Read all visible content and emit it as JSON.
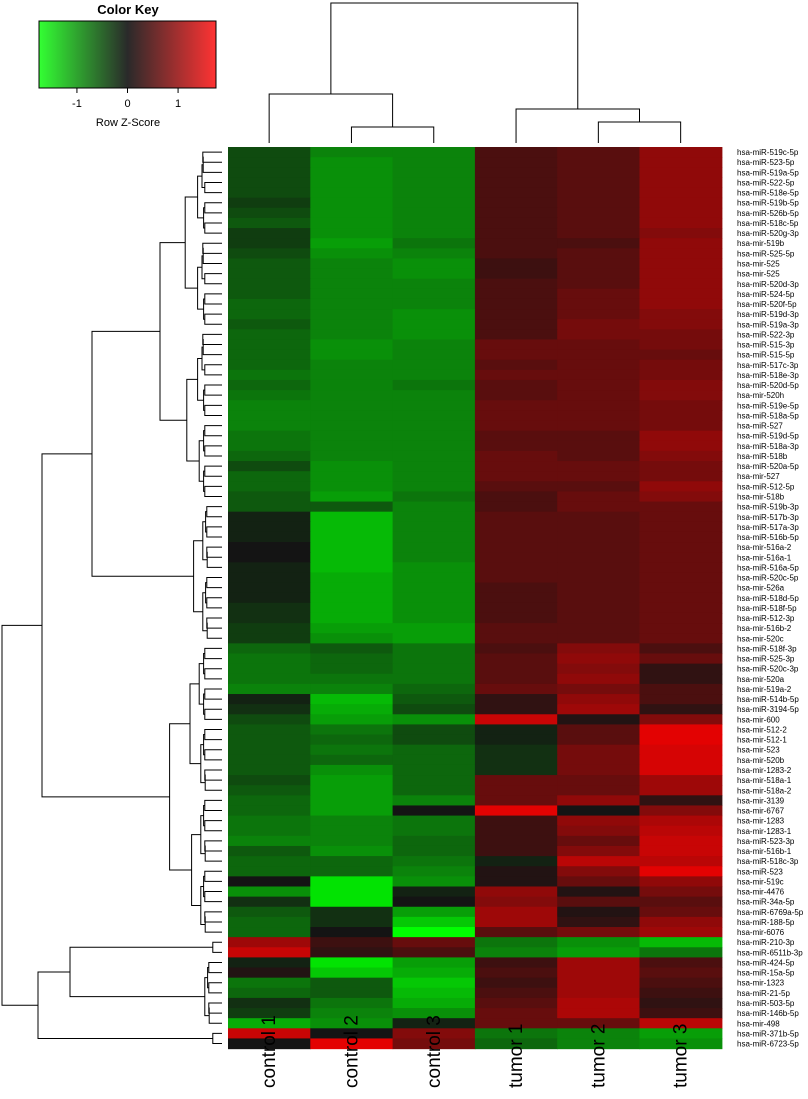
{
  "chart_data": {
    "type": "heatmap",
    "color_key": {
      "title": "Color Key",
      "label": "Row Z-Score",
      "ticks": [
        "-1",
        "0",
        "1"
      ],
      "tick_values": [
        -1,
        0,
        1
      ],
      "range": [
        -1.75,
        1.75
      ],
      "colors": {
        "low": "#33ff33",
        "mid": "#2a2a2a",
        "high": "#ff3333"
      }
    },
    "columns": [
      "control 1",
      "control 2",
      "control 3",
      "tumor 1",
      "tumor 2",
      "tumor 3"
    ],
    "rows": [
      "hsa-miR-519c-5p",
      "hsa-miR-523-5p",
      "hsa-miR-519a-5p",
      "hsa-miR-522-5p",
      "hsa-miR-518e-5p",
      "hsa-miR-519b-5p",
      "hsa-miR-526b-5p",
      "hsa-miR-518c-5p",
      "hsa-miR-520g-3p",
      "hsa-mir-519b",
      "hsa-miR-525-5p",
      "hsa-mir-525",
      "hsa-mir-525",
      "hsa-miR-520d-3p",
      "hsa-miR-524-5p",
      "hsa-miR-520f-5p",
      "hsa-miR-519d-3p",
      "hsa-miR-519a-3p",
      "hsa-miR-522-3p",
      "hsa-miR-515-3p",
      "hsa-miR-515-5p",
      "hsa-miR-517c-3p",
      "hsa-miR-518e-3p",
      "hsa-miR-520d-5p",
      "hsa-mir-520h",
      "hsa-miR-519e-5p",
      "hsa-miR-518a-5p",
      "hsa-miR-527",
      "hsa-miR-519d-5p",
      "hsa-miR-518a-3p",
      "hsa-miR-518b",
      "hsa-miR-520a-5p",
      "hsa-mir-527",
      "hsa-miR-512-5p",
      "hsa-mir-518b",
      "hsa-miR-519b-3p",
      "hsa-miR-517b-3p",
      "hsa-miR-517a-3p",
      "hsa-miR-516b-5p",
      "hsa-mir-516a-2",
      "hsa-mir-516a-1",
      "hsa-miR-516a-5p",
      "hsa-miR-520c-5p",
      "hsa-mir-526a",
      "hsa-miR-518d-5p",
      "hsa-miR-518f-5p",
      "hsa-miR-512-3p",
      "hsa-mir-516b-2",
      "hsa-mir-520c",
      "hsa-miR-518f-3p",
      "hsa-miR-525-3p",
      "hsa-miR-520c-3p",
      "hsa-mir-520a",
      "hsa-mir-519a-2",
      "hsa-miR-514b-5p",
      "hsa-miR-3194-5p",
      "hsa-mir-600",
      "hsa-mir-512-2",
      "hsa-mir-512-1",
      "hsa-mir-523",
      "hsa-mir-520b",
      "hsa-mir-1283-2",
      "hsa-mir-518a-1",
      "hsa-mir-518a-2",
      "hsa-mir-3139",
      "hsa-mir-6767",
      "hsa-mir-1283",
      "hsa-mir-1283-1",
      "hsa-miR-523-3p",
      "hsa-mir-516b-1",
      "hsa-miR-518c-3p",
      "hsa-miR-523",
      "hsa-mir-519c",
      "hsa-mir-4476",
      "hsa-miR-34a-5p",
      "hsa-miR-6769a-5p",
      "hsa-miR-188-5p",
      "hsa-mir-6076",
      "hsa-miR-210-3p",
      "hsa-miR-6511b-3p",
      "hsa-miR-424-5p",
      "hsa-miR-15a-5p",
      "hsa-mir-1323",
      "hsa-miR-21-5p",
      "hsa-miR-503-5p",
      "hsa-miR-146b-5p",
      "hsa-mir-498",
      "hsa-miR-371b-5p",
      "hsa-miR-6723-5p"
    ],
    "values": [
      [
        -0.4,
        -0.8,
        -0.8,
        0.4,
        0.5,
        0.9
      ],
      [
        -0.4,
        -0.9,
        -0.8,
        0.4,
        0.5,
        0.9
      ],
      [
        -0.4,
        -0.9,
        -0.8,
        0.4,
        0.5,
        0.9
      ],
      [
        -0.4,
        -0.9,
        -0.8,
        0.4,
        0.5,
        0.9
      ],
      [
        -0.4,
        -0.9,
        -0.8,
        0.4,
        0.5,
        0.9
      ],
      [
        -0.3,
        -0.9,
        -0.8,
        0.4,
        0.5,
        0.9
      ],
      [
        -0.4,
        -0.9,
        -0.8,
        0.4,
        0.5,
        0.9
      ],
      [
        -0.5,
        -0.9,
        -0.8,
        0.4,
        0.5,
        0.9
      ],
      [
        -0.3,
        -0.9,
        -0.8,
        0.4,
        0.5,
        0.8
      ],
      [
        -0.3,
        -1.0,
        -0.7,
        0.4,
        0.4,
        0.9
      ],
      [
        -0.4,
        -0.9,
        -0.8,
        0.4,
        0.5,
        0.9
      ],
      [
        -0.5,
        -0.8,
        -0.9,
        0.3,
        0.5,
        0.9
      ],
      [
        -0.5,
        -0.8,
        -0.9,
        0.3,
        0.5,
        0.9
      ],
      [
        -0.5,
        -0.8,
        -0.8,
        0.4,
        0.5,
        0.9
      ],
      [
        -0.5,
        -0.8,
        -0.8,
        0.4,
        0.6,
        0.9
      ],
      [
        -0.6,
        -0.8,
        -0.8,
        0.4,
        0.6,
        0.9
      ],
      [
        -0.6,
        -0.8,
        -0.9,
        0.4,
        0.6,
        0.8
      ],
      [
        -0.5,
        -0.8,
        -0.9,
        0.4,
        0.7,
        0.8
      ],
      [
        -0.6,
        -0.8,
        -0.9,
        0.4,
        0.7,
        0.7
      ],
      [
        -0.6,
        -0.9,
        -0.8,
        0.6,
        0.6,
        0.7
      ],
      [
        -0.6,
        -0.9,
        -0.8,
        0.6,
        0.6,
        0.6
      ],
      [
        -0.6,
        -0.8,
        -0.8,
        0.5,
        0.6,
        0.7
      ],
      [
        -0.7,
        -0.8,
        -0.8,
        0.6,
        0.6,
        0.7
      ],
      [
        -0.6,
        -0.8,
        -0.7,
        0.5,
        0.6,
        0.8
      ],
      [
        -0.7,
        -0.8,
        -0.8,
        0.5,
        0.6,
        0.8
      ],
      [
        -0.8,
        -0.8,
        -0.8,
        0.6,
        0.6,
        0.7
      ],
      [
        -0.8,
        -0.8,
        -0.8,
        0.6,
        0.6,
        0.7
      ],
      [
        -0.8,
        -0.8,
        -0.8,
        0.6,
        0.6,
        0.7
      ],
      [
        -0.7,
        -0.8,
        -0.8,
        0.5,
        0.5,
        0.9
      ],
      [
        -0.7,
        -0.8,
        -0.8,
        0.5,
        0.5,
        0.9
      ],
      [
        -0.6,
        -0.8,
        -0.8,
        0.6,
        0.5,
        0.8
      ],
      [
        -0.4,
        -0.9,
        -0.8,
        0.6,
        0.6,
        0.7
      ],
      [
        -0.6,
        -0.9,
        -0.8,
        0.6,
        0.6,
        0.7
      ],
      [
        -0.6,
        -0.9,
        -0.8,
        0.5,
        0.5,
        0.9
      ],
      [
        -0.5,
        -1.0,
        -0.7,
        0.4,
        0.6,
        0.8
      ],
      [
        -0.5,
        -0.5,
        -0.8,
        0.4,
        0.6,
        0.6
      ],
      [
        -0.1,
        -1.2,
        -0.8,
        0.5,
        0.5,
        0.6
      ],
      [
        -0.1,
        -1.2,
        -0.8,
        0.5,
        0.5,
        0.6
      ],
      [
        -0.1,
        -1.2,
        -0.8,
        0.5,
        0.5,
        0.6
      ],
      [
        0.0,
        -1.2,
        -0.8,
        0.5,
        0.5,
        0.6
      ],
      [
        0.0,
        -1.2,
        -0.8,
        0.5,
        0.5,
        0.6
      ],
      [
        -0.1,
        -1.2,
        -0.9,
        0.5,
        0.5,
        0.6
      ],
      [
        -0.1,
        -1.1,
        -0.9,
        0.5,
        0.5,
        0.6
      ],
      [
        -0.1,
        -1.1,
        -0.9,
        0.4,
        0.5,
        0.6
      ],
      [
        -0.1,
        -1.1,
        -0.9,
        0.4,
        0.5,
        0.6
      ],
      [
        -0.2,
        -1.1,
        -0.9,
        0.4,
        0.5,
        0.6
      ],
      [
        -0.2,
        -1.1,
        -0.9,
        0.4,
        0.5,
        0.6
      ],
      [
        -0.3,
        -1.0,
        -1.0,
        0.5,
        0.5,
        0.6
      ],
      [
        -0.3,
        -0.9,
        -1.0,
        0.5,
        0.5,
        0.6
      ],
      [
        -0.6,
        -0.5,
        -0.7,
        0.4,
        0.8,
        0.4
      ],
      [
        -0.7,
        -0.6,
        -0.7,
        0.5,
        0.9,
        0.6
      ],
      [
        -0.7,
        -0.6,
        -0.7,
        0.5,
        0.8,
        0.2
      ],
      [
        -0.7,
        -0.7,
        -0.7,
        0.5,
        0.9,
        0.2
      ],
      [
        -0.8,
        -0.8,
        -0.6,
        0.6,
        0.7,
        0.4
      ],
      [
        -0.1,
        -1.2,
        -0.5,
        0.2,
        0.9,
        0.4
      ],
      [
        -0.2,
        -1.1,
        -0.4,
        0.2,
        1.0,
        0.2
      ],
      [
        -0.4,
        -1.0,
        -0.9,
        1.3,
        0.1,
        0.8
      ],
      [
        -0.5,
        -0.7,
        -0.4,
        -0.1,
        0.5,
        1.5
      ],
      [
        -0.5,
        -0.6,
        -0.4,
        -0.1,
        0.5,
        1.5
      ],
      [
        -0.5,
        -0.7,
        -0.6,
        -0.2,
        0.7,
        1.4
      ],
      [
        -0.5,
        -0.6,
        -0.6,
        -0.2,
        0.7,
        1.4
      ],
      [
        -0.5,
        -0.9,
        -0.6,
        -0.2,
        0.7,
        1.4
      ],
      [
        -0.4,
        -1.0,
        -0.6,
        0.6,
        0.6,
        1.0
      ],
      [
        -0.5,
        -1.0,
        -0.6,
        0.6,
        0.6,
        1.0
      ],
      [
        -0.6,
        -1.0,
        -0.8,
        0.6,
        0.9,
        0.2
      ],
      [
        -0.6,
        -1.0,
        0.0,
        1.5,
        0.0,
        0.8
      ],
      [
        -0.7,
        -0.8,
        -0.7,
        0.3,
        0.9,
        1.1
      ],
      [
        -0.7,
        -0.8,
        -0.7,
        0.3,
        0.8,
        1.2
      ],
      [
        -0.8,
        -0.8,
        -0.6,
        0.3,
        0.6,
        1.3
      ],
      [
        -0.5,
        -0.9,
        -0.6,
        0.3,
        0.8,
        1.3
      ],
      [
        -0.6,
        -0.6,
        -0.7,
        -0.1,
        1.2,
        1.2
      ],
      [
        -0.6,
        -0.6,
        -0.8,
        0.1,
        0.8,
        1.5
      ],
      [
        0.0,
        -1.5,
        -0.9,
        0.1,
        0.6,
        0.9
      ],
      [
        -0.9,
        -1.5,
        -0.1,
        0.9,
        0.1,
        0.7
      ],
      [
        -0.2,
        -1.5,
        0.0,
        0.8,
        0.5,
        0.5
      ],
      [
        -0.5,
        -0.2,
        -1.0,
        1.0,
        0.1,
        0.6
      ],
      [
        -0.6,
        -0.2,
        -1.3,
        1.0,
        0.2,
        0.9
      ],
      [
        -0.6,
        0.0,
        -1.7,
        0.5,
        0.7,
        1.0
      ],
      [
        1.0,
        0.3,
        0.6,
        -0.7,
        -0.9,
        -1.2
      ],
      [
        1.3,
        0.2,
        0.4,
        -0.8,
        -1.0,
        -0.7
      ],
      [
        -0.1,
        -1.5,
        -1.0,
        0.3,
        1.0,
        0.4
      ],
      [
        0.1,
        -1.3,
        -1.1,
        0.4,
        1.0,
        0.5
      ],
      [
        -0.7,
        -0.5,
        -1.3,
        0.3,
        1.0,
        0.4
      ],
      [
        -0.6,
        -0.5,
        -1.2,
        0.4,
        1.0,
        0.3
      ],
      [
        -0.2,
        -0.7,
        -1.1,
        0.5,
        1.1,
        0.2
      ],
      [
        -0.3,
        -0.8,
        -0.9,
        0.6,
        1.1,
        0.3
      ],
      [
        -1.1,
        -0.9,
        -0.1,
        0.6,
        0.6,
        1.2
      ],
      [
        1.3,
        0.0,
        0.8,
        -0.7,
        -0.8,
        -1.0
      ],
      [
        0.0,
        1.5,
        0.7,
        -0.6,
        -0.8,
        -0.9
      ]
    ]
  }
}
